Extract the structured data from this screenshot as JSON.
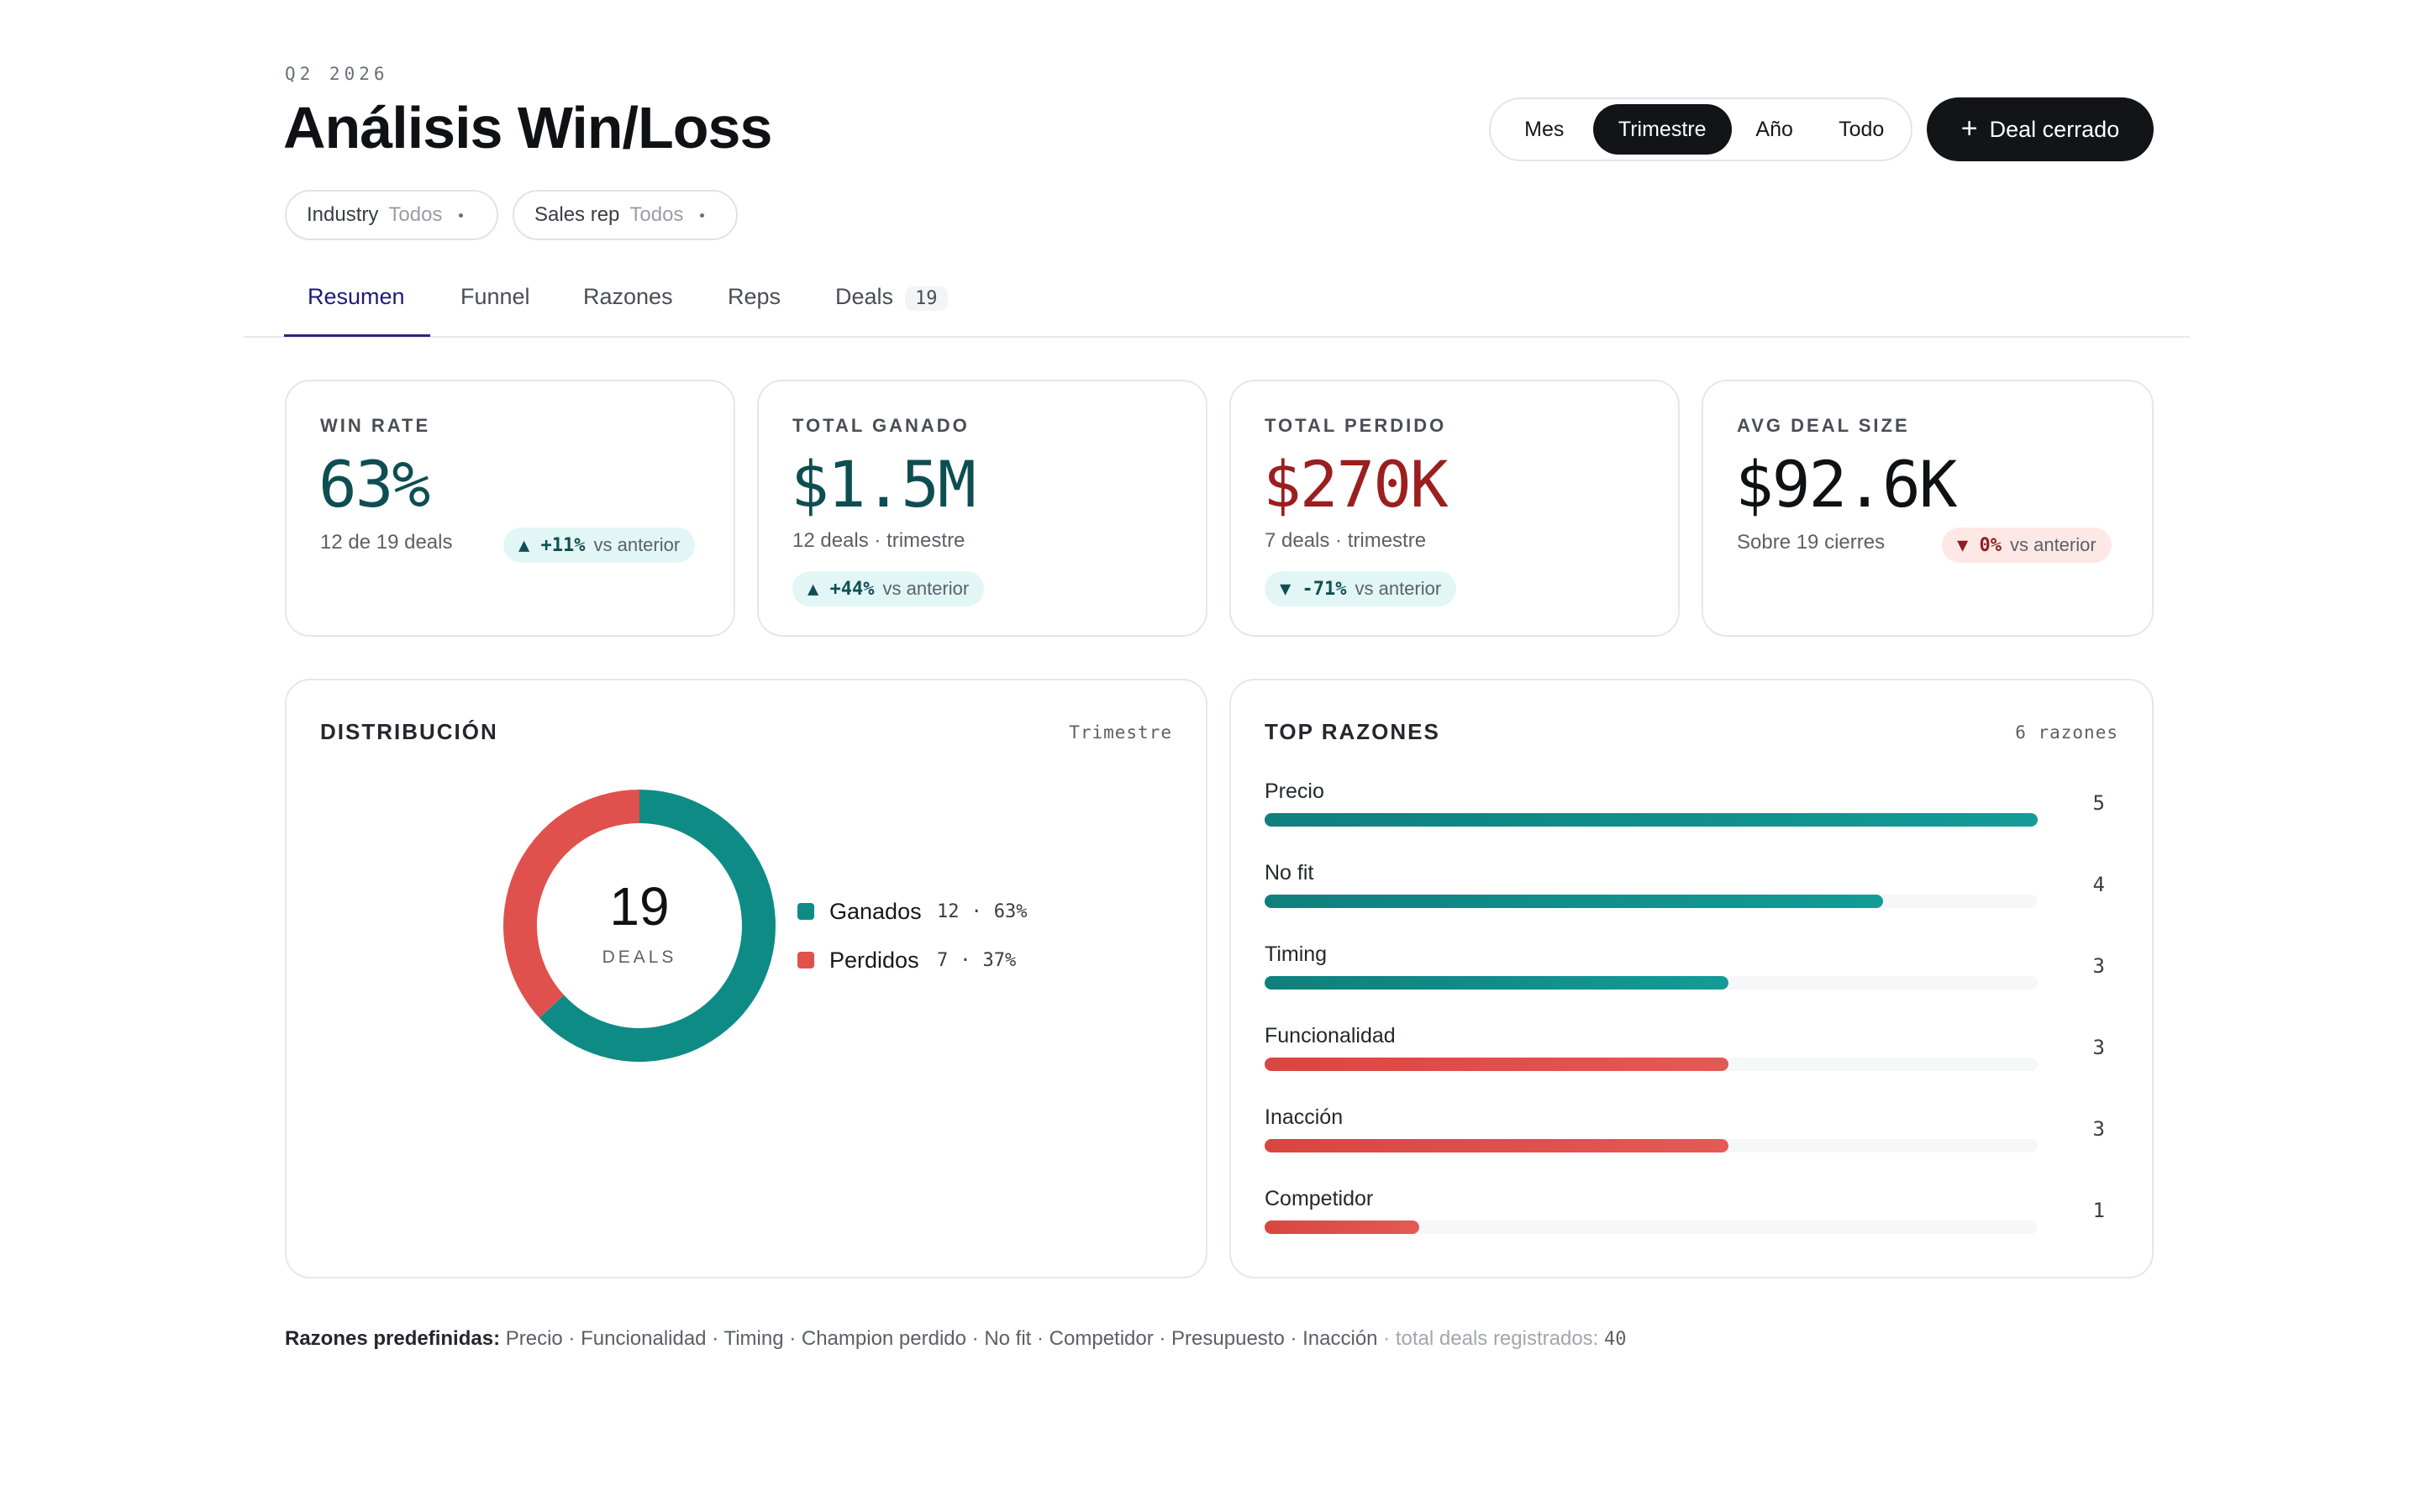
{
  "header": {
    "eyebrow": "Q2 2026",
    "title": "Análisis Win/Loss",
    "period_options": [
      "Mes",
      "Trimestre",
      "Año",
      "Todo"
    ],
    "period_selected": "Trimestre",
    "cta_label": "Deal cerrado"
  },
  "filters": [
    {
      "label": "Industry",
      "value": "Todos"
    },
    {
      "label": "Sales rep",
      "value": "Todos"
    }
  ],
  "tabs": [
    {
      "label": "Resumen",
      "active": true
    },
    {
      "label": "Funnel"
    },
    {
      "label": "Razones"
    },
    {
      "label": "Reps"
    },
    {
      "label": "Deals",
      "count": "19"
    }
  ],
  "kpis": [
    {
      "label": "WIN RATE",
      "value": "63%",
      "sub": "12 de 19 deals",
      "change": "▲ +11%",
      "vs": "vs anterior",
      "value_color": "#0e4e52",
      "pill": "teal"
    },
    {
      "label": "TOTAL GANADO",
      "value": "$1.5M",
      "sub": "12 deals · trimestre",
      "change": "▲ +44%",
      "vs": "vs anterior",
      "value_color": "#0e4e52",
      "pill": "teal"
    },
    {
      "label": "TOTAL PERDIDO",
      "value": "$270K",
      "sub": "7 deals · trimestre",
      "change": "▼ -71%",
      "vs": "vs anterior",
      "value_color": "#9b1f1f",
      "pill": "teal"
    },
    {
      "label": "AVG DEAL SIZE",
      "value": "$92.6K",
      "sub": "Sobre 19 cierres",
      "change": "▼ 0%",
      "vs": "vs anterior",
      "value_color": "#0f1115",
      "pill": "red"
    }
  ],
  "distribution": {
    "title": "DISTRIBUCIÓN",
    "meta": "Trimestre",
    "total": "19",
    "total_label": "DEALS",
    "legend": [
      {
        "name": "Ganados",
        "count": "12",
        "pct": "63%"
      },
      {
        "name": "Perdidos",
        "count": "7",
        "pct": "37%"
      }
    ]
  },
  "reasons": {
    "title": "TOP RAZONES",
    "meta": "6 razones",
    "items": [
      {
        "label": "Precio",
        "count": "5"
      },
      {
        "label": "No fit",
        "count": "4"
      },
      {
        "label": "Timing",
        "count": "3"
      },
      {
        "label": "Funcionalidad",
        "count": "3"
      },
      {
        "label": "Inacción",
        "count": "3"
      },
      {
        "label": "Competidor",
        "count": "1"
      }
    ]
  },
  "footer": {
    "prefix": "Razones predefinidas:",
    "list": "Precio · Funcionalidad · Timing · Champion perdido · No fit · Competidor · Presupuesto · Inacción",
    "total_label": "· total deals registrados:",
    "total_value": "40"
  },
  "chart_data": [
    {
      "type": "pie",
      "categories": [
        "Ganados",
        "Perdidos"
      ],
      "values": [
        12,
        7
      ]
    },
    {
      "type": "bar",
      "categories": [
        "Precio",
        "No fit",
        "Timing",
        "Funcionalidad",
        "Inacción",
        "Competidor"
      ],
      "values": [
        5,
        4,
        3,
        3,
        3,
        1
      ]
    }
  ],
  "colors": {
    "won": "#0f8b86",
    "lost": "#e0514d",
    "accent": "#2b2585",
    "dark": "#131418"
  }
}
